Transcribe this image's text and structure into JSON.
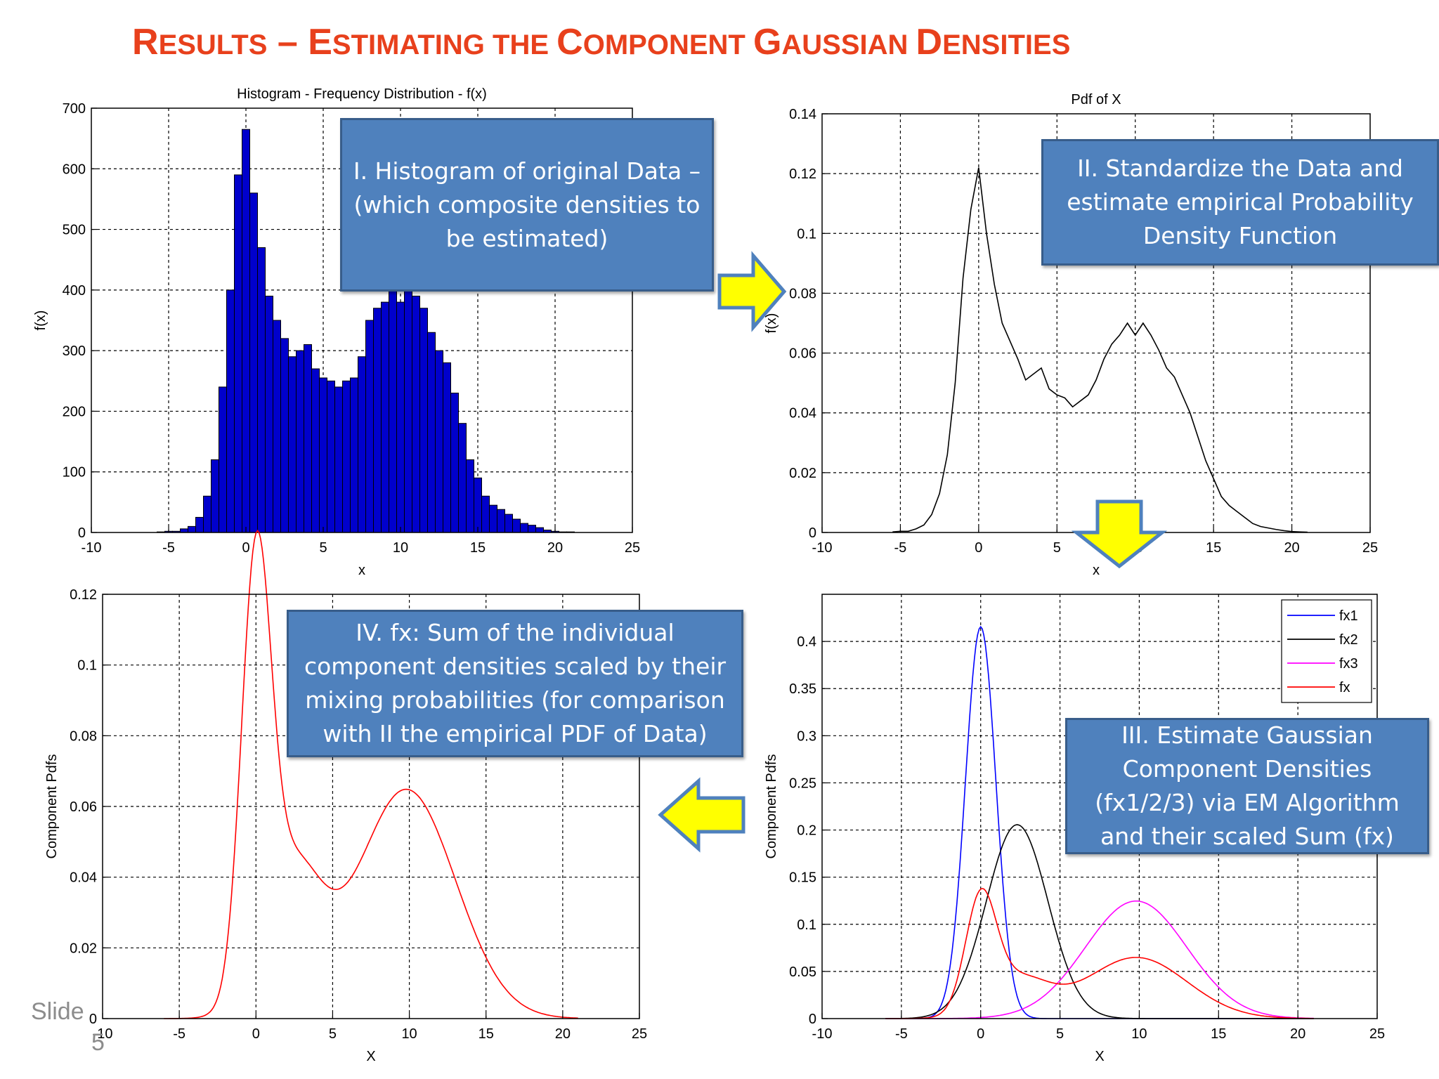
{
  "slide": {
    "title_parts": [
      {
        "text": "R",
        "big": true
      },
      {
        "text": "ESULTS",
        "big": false
      },
      {
        "text": " – ",
        "big": true
      },
      {
        "text": "E",
        "big": true
      },
      {
        "text": "STIMATING THE ",
        "big": false
      },
      {
        "text": "C",
        "big": true
      },
      {
        "text": "OMPONENT ",
        "big": false
      },
      {
        "text": "G",
        "big": true
      },
      {
        "text": "AUSSIAN ",
        "big": false
      },
      {
        "text": "D",
        "big": true
      },
      {
        "text": "ENSITIES",
        "big": false
      }
    ],
    "title_color": "#e8401c",
    "slide_label": "Slide",
    "slide_number": "5"
  },
  "callouts": {
    "c1": "I. Histogram of original Data – (which composite densities to be estimated)",
    "c2": "II. Standardize the Data and estimate empirical Probability Density Function",
    "c3": "III. Estimate Gaussian Component Densities (fx1/2/3) via EM Algorithm and their scaled Sum (fx)",
    "c4": "IV. fx: Sum of the individual component densities scaled by their mixing probabilities (for comparison with II the empirical PDF of Data)",
    "fill": "#4f81bd",
    "arrow_fill": "#ffff00"
  },
  "chart_data": [
    {
      "type": "bar",
      "title": "Histogram - Frequency Distribution - f(x)",
      "xlabel": "x",
      "ylabel": "f(x)",
      "xlim": [
        -10,
        25
      ],
      "ylim": [
        0,
        700
      ],
      "xticks": [
        -10,
        -5,
        0,
        5,
        10,
        15,
        20,
        25
      ],
      "yticks": [
        0,
        100,
        200,
        300,
        400,
        500,
        600,
        700
      ],
      "grid": true,
      "bar_color": "#0000cc",
      "x": [
        -5.5,
        -5.0,
        -4.5,
        -4.0,
        -3.5,
        -3.0,
        -2.5,
        -2.0,
        -1.5,
        -1.0,
        -0.5,
        0.0,
        0.5,
        1.0,
        1.5,
        2.0,
        2.5,
        3.0,
        3.5,
        4.0,
        4.5,
        5.0,
        5.5,
        6.0,
        6.5,
        7.0,
        7.5,
        8.0,
        8.5,
        9.0,
        9.5,
        10.0,
        10.5,
        11.0,
        11.5,
        12.0,
        12.5,
        13.0,
        13.5,
        14.0,
        14.5,
        15.0,
        15.5,
        16.0,
        16.5,
        17.0,
        17.5,
        18.0,
        18.5,
        19.0,
        19.5,
        20.0,
        20.5,
        21.0
      ],
      "values": [
        1,
        2,
        2,
        6,
        10,
        25,
        60,
        120,
        240,
        400,
        590,
        665,
        560,
        470,
        390,
        350,
        320,
        290,
        300,
        310,
        270,
        255,
        250,
        240,
        250,
        255,
        290,
        350,
        370,
        380,
        405,
        380,
        410,
        390,
        370,
        330,
        300,
        280,
        230,
        180,
        120,
        90,
        60,
        45,
        38,
        30,
        22,
        15,
        12,
        8,
        4,
        2,
        1,
        1
      ]
    },
    {
      "type": "line",
      "title": "Pdf of X",
      "xlabel": "x",
      "ylabel": "f(x)",
      "xlim": [
        -10,
        25
      ],
      "ylim": [
        0,
        0.14
      ],
      "xticks": [
        -10,
        -5,
        0,
        5,
        10,
        15,
        20,
        25
      ],
      "yticks": [
        0,
        0.02,
        0.04,
        0.06,
        0.08,
        0.1,
        0.12,
        0.14
      ],
      "grid": true,
      "line_color": "#000000",
      "x": [
        -5.5,
        -5.0,
        -4.5,
        -4.0,
        -3.5,
        -3.0,
        -2.5,
        -2.0,
        -1.5,
        -1.0,
        -0.5,
        0.0,
        0.5,
        1.0,
        1.5,
        2.0,
        2.5,
        3.0,
        3.5,
        4.0,
        4.5,
        5.0,
        5.5,
        6.0,
        6.5,
        7.0,
        7.5,
        8.0,
        8.5,
        9.0,
        9.5,
        10.0,
        10.5,
        11.0,
        11.5,
        12.0,
        12.5,
        13.0,
        13.5,
        14.0,
        14.5,
        15.0,
        15.5,
        16.0,
        16.5,
        17.0,
        17.5,
        18.0,
        18.5,
        19.0,
        19.5,
        20.0,
        20.5,
        21.0
      ],
      "values": [
        0.0002,
        0.0004,
        0.0004,
        0.0012,
        0.0025,
        0.006,
        0.013,
        0.026,
        0.05,
        0.085,
        0.108,
        0.122,
        0.1,
        0.083,
        0.07,
        0.064,
        0.058,
        0.051,
        0.053,
        0.055,
        0.048,
        0.046,
        0.045,
        0.042,
        0.044,
        0.046,
        0.051,
        0.058,
        0.063,
        0.066,
        0.07,
        0.066,
        0.07,
        0.066,
        0.061,
        0.055,
        0.052,
        0.046,
        0.04,
        0.032,
        0.024,
        0.018,
        0.012,
        0.009,
        0.007,
        0.005,
        0.003,
        0.002,
        0.0015,
        0.001,
        0.0006,
        0.0003,
        0.0002,
        0.0001
      ]
    },
    {
      "type": "line",
      "title": "",
      "xlabel": "X",
      "ylabel": "Component Pdfs",
      "xlim": [
        -10,
        25
      ],
      "ylim": [
        0,
        0.45
      ],
      "xticks": [
        -10,
        -5,
        0,
        5,
        10,
        15,
        20,
        25
      ],
      "yticks": [
        0,
        0.05,
        0.1,
        0.15,
        0.2,
        0.25,
        0.3,
        0.35,
        0.4
      ],
      "grid": true,
      "legend": "top-right",
      "series": [
        {
          "name": "fx1",
          "color": "#0000ff",
          "mean": 0,
          "sd": 0.96,
          "weight": 1
        },
        {
          "name": "fx2",
          "color": "#000000",
          "mean": 2.3,
          "sd": 1.94,
          "weight": 1
        },
        {
          "name": "fx3",
          "color": "#ff00ff",
          "mean": 9.8,
          "sd": 3.2,
          "weight": 1
        },
        {
          "name": "fx",
          "color": "#ff0000",
          "components": [
            {
              "mean": 0,
              "sd": 0.96,
              "weight": 0.28
            },
            {
              "mean": 2.3,
              "sd": 1.94,
              "weight": 0.2
            },
            {
              "mean": 9.8,
              "sd": 3.2,
              "weight": 0.52
            }
          ]
        }
      ]
    },
    {
      "type": "line",
      "title": "",
      "xlabel": "X",
      "ylabel": "Component Pdfs",
      "xlim": [
        -10,
        25
      ],
      "ylim": [
        0,
        0.12
      ],
      "xticks": [
        -10,
        -5,
        0,
        5,
        10,
        15,
        20,
        25
      ],
      "yticks": [
        0,
        0.02,
        0.04,
        0.06,
        0.08,
        0.1,
        0.12
      ],
      "grid": true,
      "series": [
        {
          "name": "fx",
          "color": "#ff0000",
          "components": [
            {
              "mean": 0,
              "sd": 0.96,
              "weight": 0.28
            },
            {
              "mean": 2.3,
              "sd": 1.94,
              "weight": 0.2
            },
            {
              "mean": 9.8,
              "sd": 3.2,
              "weight": 0.52
            }
          ]
        }
      ]
    }
  ]
}
